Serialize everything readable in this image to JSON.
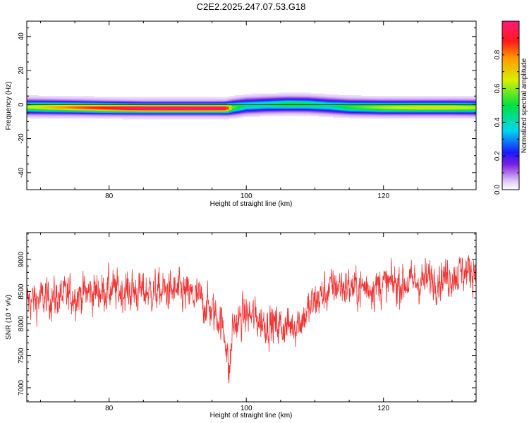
{
  "title": "C2E2.2025.247.07.53.G18",
  "chart_data": [
    {
      "type": "heatmap",
      "xlabel": "Height of straight line (km)",
      "ylabel": "Frequency (Hz)",
      "xlim": [
        68,
        133.5
      ],
      "ylim": [
        -50,
        49
      ],
      "xticks": [
        80,
        100,
        120
      ],
      "yticks": [
        -40,
        -20,
        0,
        20,
        40
      ],
      "colorbar": {
        "label": "Normalized spectral amplitude",
        "range": [
          0,
          1
        ],
        "ticks": [
          0.0,
          0.2,
          0.4,
          0.6,
          0.8
        ]
      },
      "ridge": {
        "x": [
          68,
          75,
          80,
          85,
          90,
          95,
          97,
          98,
          100,
          103,
          106,
          109,
          112,
          115,
          120,
          125,
          130,
          133.5
        ],
        "center_hz": [
          -1.2,
          -1.5,
          -1.8,
          -2.0,
          -2.0,
          -2.0,
          -2.0,
          -1.5,
          -0.5,
          0.0,
          0.3,
          0.2,
          -0.5,
          -1.2,
          -1.5,
          -1.5,
          -1.5,
          -1.6
        ],
        "peak_amplitude": [
          0.55,
          0.75,
          0.85,
          0.95,
          0.95,
          0.95,
          0.9,
          0.5,
          0.35,
          0.35,
          0.42,
          0.4,
          0.35,
          0.45,
          0.55,
          0.6,
          0.6,
          0.55
        ]
      }
    },
    {
      "type": "line",
      "xlabel": "Height of straight line (km)",
      "ylabel": "SNR (10 * v/v)",
      "xlim": [
        68,
        133.5
      ],
      "ylim": [
        6780,
        9420
      ],
      "xticks": [
        80,
        100,
        120
      ],
      "yticks": [
        7000,
        7500,
        8000,
        8500,
        9000
      ],
      "color": "#f03232",
      "trend": {
        "x": [
          68,
          75,
          80,
          85,
          90,
          93,
          95,
          96,
          97,
          97.5,
          98,
          99,
          100,
          103,
          106,
          108,
          110,
          113,
          116,
          120,
          125,
          130,
          133.5
        ],
        "y": [
          8350,
          8450,
          8520,
          8500,
          8500,
          8400,
          8200,
          8100,
          7800,
          7150,
          7950,
          8050,
          8150,
          8000,
          7950,
          8050,
          8350,
          8600,
          8550,
          8600,
          8650,
          8750,
          8850
        ]
      },
      "noise_amplitude": 250,
      "samples": 1800
    }
  ]
}
